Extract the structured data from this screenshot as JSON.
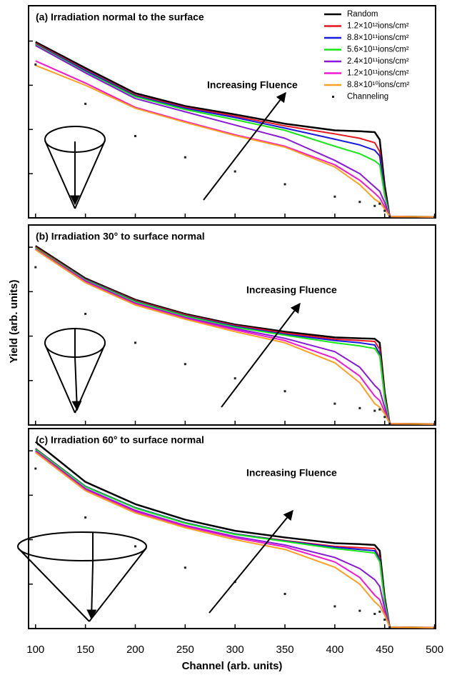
{
  "chart_data": [
    {
      "type": "line",
      "title": "(a) Irradiation normal to the surface",
      "annotation": "Increasing Fluence",
      "legend": "upper right",
      "xlim": [
        93,
        501
      ],
      "xticks": [
        100,
        150,
        200,
        250,
        300,
        350,
        400,
        450,
        500
      ],
      "ylim": [
        0,
        4.8
      ],
      "yticks": [
        0,
        1,
        2,
        3,
        4
      ],
      "x": [
        100,
        150,
        200,
        250,
        300,
        350,
        400,
        425,
        440,
        445,
        450,
        455,
        500
      ],
      "series": [
        {
          "name": "Random",
          "color": "#000000",
          "values": [
            3.98,
            3.39,
            2.82,
            2.53,
            2.34,
            2.13,
            1.98,
            1.96,
            1.94,
            1.77,
            0.73,
            0.03,
            0.02
          ]
        },
        {
          "name": "1.2×10¹²ions/cm²",
          "color": "#e8141c",
          "values": [
            3.95,
            3.35,
            2.78,
            2.5,
            2.3,
            2.08,
            1.9,
            1.8,
            1.7,
            1.5,
            0.6,
            0.03,
            0.02
          ]
        },
        {
          "name": "8.8×10¹¹ions/cm²",
          "color": "#1a1adf",
          "values": [
            3.93,
            3.33,
            2.76,
            2.48,
            2.27,
            2.03,
            1.78,
            1.65,
            1.53,
            1.4,
            0.55,
            0.03,
            0.02
          ]
        },
        {
          "name": "5.6×10¹¹ions/cm²",
          "color": "#18e818",
          "values": [
            3.92,
            3.3,
            2.74,
            2.45,
            2.22,
            1.98,
            1.62,
            1.45,
            1.29,
            1.2,
            0.5,
            0.03,
            0.02
          ]
        },
        {
          "name": "2.4×10¹¹ions/cm²",
          "color": "#8a18d8",
          "values": [
            3.9,
            3.28,
            2.7,
            2.4,
            2.1,
            1.8,
            1.3,
            1.0,
            0.7,
            0.6,
            0.35,
            0.03,
            0.02
          ]
        },
        {
          "name": "1.2×10¹¹ions/cm²",
          "color": "#f018d0",
          "values": [
            3.55,
            3.05,
            2.5,
            2.18,
            1.88,
            1.62,
            1.2,
            0.85,
            0.56,
            0.45,
            0.25,
            0.03,
            0.02
          ]
        },
        {
          "name": "8.8×10¹⁰ions/cm²",
          "color": "#ffa020",
          "values": [
            3.45,
            3.0,
            2.48,
            2.16,
            1.86,
            1.6,
            1.15,
            0.75,
            0.42,
            0.35,
            0.2,
            0.03,
            0.02
          ]
        },
        {
          "name": "Channeling",
          "color": "#222222",
          "marker": "dot",
          "values": [
            3.47,
            2.58,
            1.85,
            1.37,
            1.05,
            0.76,
            0.48,
            0.36,
            0.27,
            0.32,
            0.16,
            0.03,
            0.02
          ]
        }
      ]
    },
    {
      "type": "line",
      "title": "(b) Irradiation 30° to surface normal",
      "annotation": "Increasing Fluence",
      "ylabel": "Yield (arb. units)",
      "xlim": [
        93,
        501
      ],
      "xticks": [
        100,
        150,
        200,
        250,
        300,
        350,
        400,
        450,
        500
      ],
      "ylim": [
        0,
        4.5
      ],
      "yticks": [
        0,
        1,
        2,
        3,
        4
      ],
      "x": [
        100,
        150,
        200,
        250,
        300,
        350,
        400,
        425,
        440,
        445,
        450,
        455,
        500
      ],
      "series": [
        {
          "color": "#000000",
          "values": [
            4.03,
            3.3,
            2.82,
            2.5,
            2.26,
            2.1,
            1.97,
            1.95,
            1.94,
            1.85,
            0.73,
            0.03,
            0.02
          ]
        },
        {
          "color": "#e8141c",
          "values": [
            4.0,
            3.28,
            2.8,
            2.48,
            2.24,
            2.07,
            1.93,
            1.9,
            1.88,
            1.7,
            0.65,
            0.03,
            0.02
          ]
        },
        {
          "color": "#1a1adf",
          "values": [
            3.98,
            3.27,
            2.78,
            2.46,
            2.22,
            2.04,
            1.9,
            1.85,
            1.8,
            1.6,
            0.6,
            0.03,
            0.02
          ]
        },
        {
          "color": "#18e818",
          "values": [
            3.98,
            3.26,
            2.77,
            2.45,
            2.2,
            2.02,
            1.85,
            1.78,
            1.72,
            1.55,
            0.58,
            0.03,
            0.02
          ]
        },
        {
          "color": "#8a18d8",
          "values": [
            3.96,
            3.24,
            2.74,
            2.42,
            2.17,
            1.95,
            1.65,
            1.3,
            0.89,
            0.78,
            0.4,
            0.03,
            0.02
          ]
        },
        {
          "color": "#f018d0",
          "values": [
            3.95,
            3.22,
            2.72,
            2.4,
            2.14,
            1.9,
            1.5,
            1.1,
            0.65,
            0.55,
            0.3,
            0.03,
            0.02
          ]
        },
        {
          "color": "#ffa020",
          "values": [
            3.94,
            3.2,
            2.7,
            2.38,
            2.1,
            1.85,
            1.4,
            0.95,
            0.48,
            0.4,
            0.25,
            0.03,
            0.02
          ]
        },
        {
          "color": "#222222",
          "marker": "dot",
          "values": [
            3.55,
            2.5,
            1.85,
            1.37,
            1.05,
            0.76,
            0.48,
            0.38,
            0.32,
            0.35,
            0.18,
            0.03,
            0.02
          ]
        }
      ]
    },
    {
      "type": "line",
      "title": "(c) Irradiation 60° to surface normal",
      "annotation": "Increasing Fluence",
      "xlabel": "Channel (arb. units)",
      "xlim": [
        93,
        501
      ],
      "xticks": [
        100,
        150,
        200,
        250,
        300,
        350,
        400,
        450,
        500
      ],
      "ylim": [
        0,
        4.5
      ],
      "yticks": [
        0,
        1,
        2,
        3,
        4
      ],
      "x": [
        100,
        150,
        200,
        250,
        300,
        350,
        400,
        425,
        440,
        445,
        450,
        455,
        500
      ],
      "series": [
        {
          "color": "#000000",
          "values": [
            4.2,
            3.3,
            2.8,
            2.45,
            2.2,
            2.05,
            1.92,
            1.9,
            1.88,
            1.75,
            0.7,
            0.03,
            0.02
          ]
        },
        {
          "color": "#e8141c",
          "values": [
            4.05,
            3.2,
            2.72,
            2.38,
            2.13,
            1.98,
            1.85,
            1.82,
            1.8,
            1.6,
            0.62,
            0.03,
            0.02
          ]
        },
        {
          "color": "#1a1adf",
          "values": [
            4.04,
            3.2,
            2.72,
            2.38,
            2.13,
            1.97,
            1.83,
            1.78,
            1.75,
            1.55,
            0.6,
            0.03,
            0.02
          ]
        },
        {
          "color": "#18e818",
          "values": [
            4.03,
            3.19,
            2.71,
            2.37,
            2.12,
            1.96,
            1.8,
            1.74,
            1.7,
            1.5,
            0.58,
            0.03,
            0.02
          ]
        },
        {
          "color": "#8a18d8",
          "values": [
            4.0,
            3.15,
            2.66,
            2.32,
            2.07,
            1.88,
            1.6,
            1.35,
            1.1,
            0.95,
            0.45,
            0.03,
            0.02
          ]
        },
        {
          "color": "#f018d0",
          "values": [
            3.98,
            3.12,
            2.63,
            2.3,
            2.04,
            1.84,
            1.5,
            1.15,
            0.75,
            0.65,
            0.35,
            0.03,
            0.02
          ]
        },
        {
          "color": "#ffa020",
          "values": [
            3.96,
            3.1,
            2.6,
            2.27,
            2.0,
            1.78,
            1.38,
            1.0,
            0.6,
            0.5,
            0.3,
            0.03,
            0.02
          ]
        },
        {
          "color": "#222222",
          "marker": "dot",
          "values": [
            3.6,
            2.5,
            1.85,
            1.37,
            1.05,
            0.78,
            0.5,
            0.4,
            0.33,
            0.38,
            0.2,
            0.03,
            0.02
          ]
        }
      ]
    }
  ]
}
